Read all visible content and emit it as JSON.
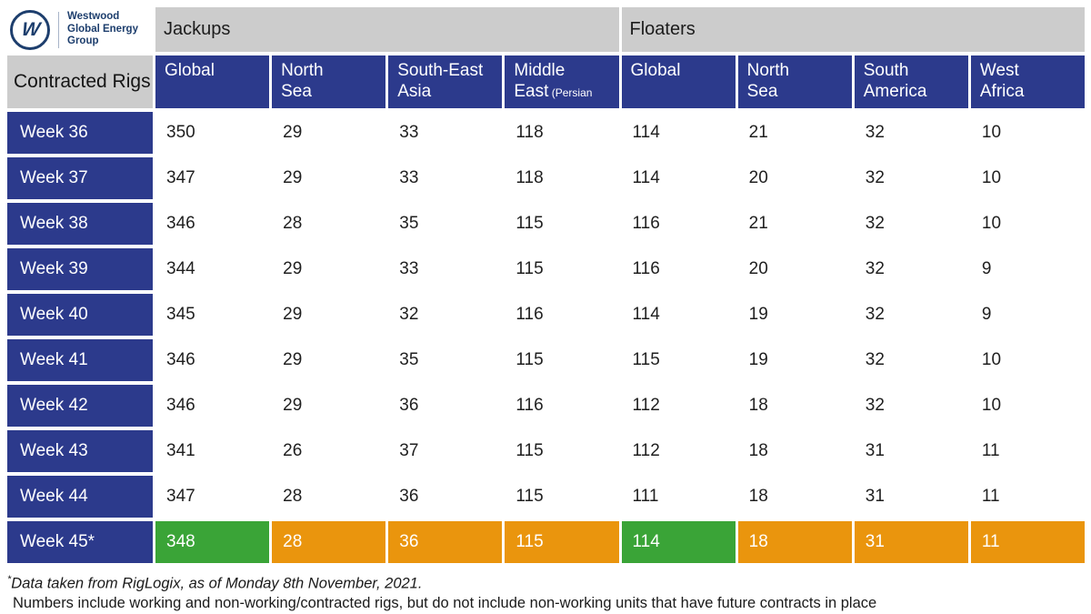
{
  "brand": {
    "logo_letter": "W",
    "name_line1": "Westwood",
    "name_line2": "Global Energy",
    "name_line3": "Group"
  },
  "colors": {
    "navy": "#2c3a8c",
    "logo_navy": "#1d3e6d",
    "band_gray": "#cccccc",
    "green": "#3aa437",
    "orange": "#ea950d"
  },
  "table": {
    "corner_title": "Contracted Rigs",
    "group_jackups": "Jackups",
    "group_floaters": "Floaters",
    "columns": [
      {
        "id": "jackups-global",
        "line1": "Global"
      },
      {
        "id": "jackups-north-sea",
        "line1": "North",
        "line2": "Sea"
      },
      {
        "id": "jackups-south-east-asia",
        "line1": "South-East",
        "line2": "Asia"
      },
      {
        "id": "jackups-middle-east",
        "line1": "Middle",
        "line2": "East",
        "suffix": "(Persian Gulf)"
      },
      {
        "id": "floaters-global",
        "line1": "Global"
      },
      {
        "id": "floaters-north-sea",
        "line1": "North",
        "line2": "Sea"
      },
      {
        "id": "floaters-south-america",
        "line1": "South",
        "line2": "America"
      },
      {
        "id": "floaters-west-africa",
        "line1": "West",
        "line2": "Africa"
      }
    ]
  },
  "chart_data": {
    "type": "table",
    "title": "Contracted Rigs",
    "column_groups": [
      {
        "label": "Jackups",
        "columns": [
          "Global",
          "North Sea",
          "South-East Asia",
          "Middle East (Persian Gulf)"
        ]
      },
      {
        "label": "Floaters",
        "columns": [
          "Global",
          "North Sea",
          "South America",
          "West Africa"
        ]
      }
    ],
    "rows": [
      {
        "label": "Week 36",
        "values": [
          350,
          29,
          33,
          118,
          114,
          21,
          32,
          10
        ]
      },
      {
        "label": "Week 37",
        "values": [
          347,
          29,
          33,
          118,
          114,
          20,
          32,
          10
        ]
      },
      {
        "label": "Week 38",
        "values": [
          346,
          28,
          35,
          115,
          116,
          21,
          32,
          10
        ]
      },
      {
        "label": "Week 39",
        "values": [
          344,
          29,
          33,
          115,
          116,
          20,
          32,
          9
        ]
      },
      {
        "label": "Week 40",
        "values": [
          345,
          29,
          32,
          116,
          114,
          19,
          32,
          9
        ]
      },
      {
        "label": "Week 41",
        "values": [
          346,
          29,
          35,
          115,
          115,
          19,
          32,
          10
        ]
      },
      {
        "label": "Week 42",
        "values": [
          346,
          29,
          36,
          116,
          112,
          18,
          32,
          10
        ]
      },
      {
        "label": "Week 43",
        "values": [
          341,
          26,
          37,
          115,
          112,
          18,
          31,
          11
        ]
      },
      {
        "label": "Week 44",
        "values": [
          347,
          28,
          36,
          115,
          111,
          18,
          31,
          11
        ]
      },
      {
        "label": "Week 45*",
        "values": [
          348,
          28,
          36,
          115,
          114,
          18,
          31,
          11
        ],
        "highlight": [
          "green",
          "orange",
          "orange",
          "orange",
          "green",
          "orange",
          "orange",
          "orange"
        ]
      }
    ]
  },
  "footnote": {
    "line1_mark": "*",
    "line1": "Data taken from RigLogix, as of Monday 8th November, 2021.",
    "line2": "Numbers include working and non-working/contracted rigs, but do not include non-working units that have future contracts in place"
  }
}
